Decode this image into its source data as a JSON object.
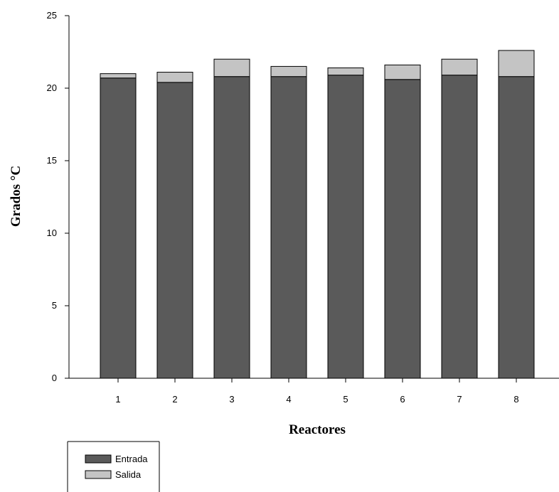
{
  "chart_data": {
    "type": "bar",
    "stacked": true,
    "categories": [
      "1",
      "2",
      "3",
      "4",
      "5",
      "6",
      "7",
      "8"
    ],
    "series": [
      {
        "name": "Entrada",
        "color": "#5a5a5a",
        "values": [
          20.7,
          20.4,
          20.8,
          20.8,
          20.9,
          20.6,
          20.9,
          20.8
        ]
      },
      {
        "name": "Salida",
        "color": "#c4c4c4",
        "values": [
          0.3,
          0.7,
          1.2,
          0.7,
          0.5,
          1.0,
          1.1,
          1.8
        ]
      }
    ],
    "xlabel": "Reactores",
    "ylabel": "Grados °C",
    "ylim": [
      0,
      25
    ],
    "yticks": [
      0,
      5,
      10,
      15,
      20,
      25
    ],
    "grid": false,
    "legend": "bottom-left"
  }
}
